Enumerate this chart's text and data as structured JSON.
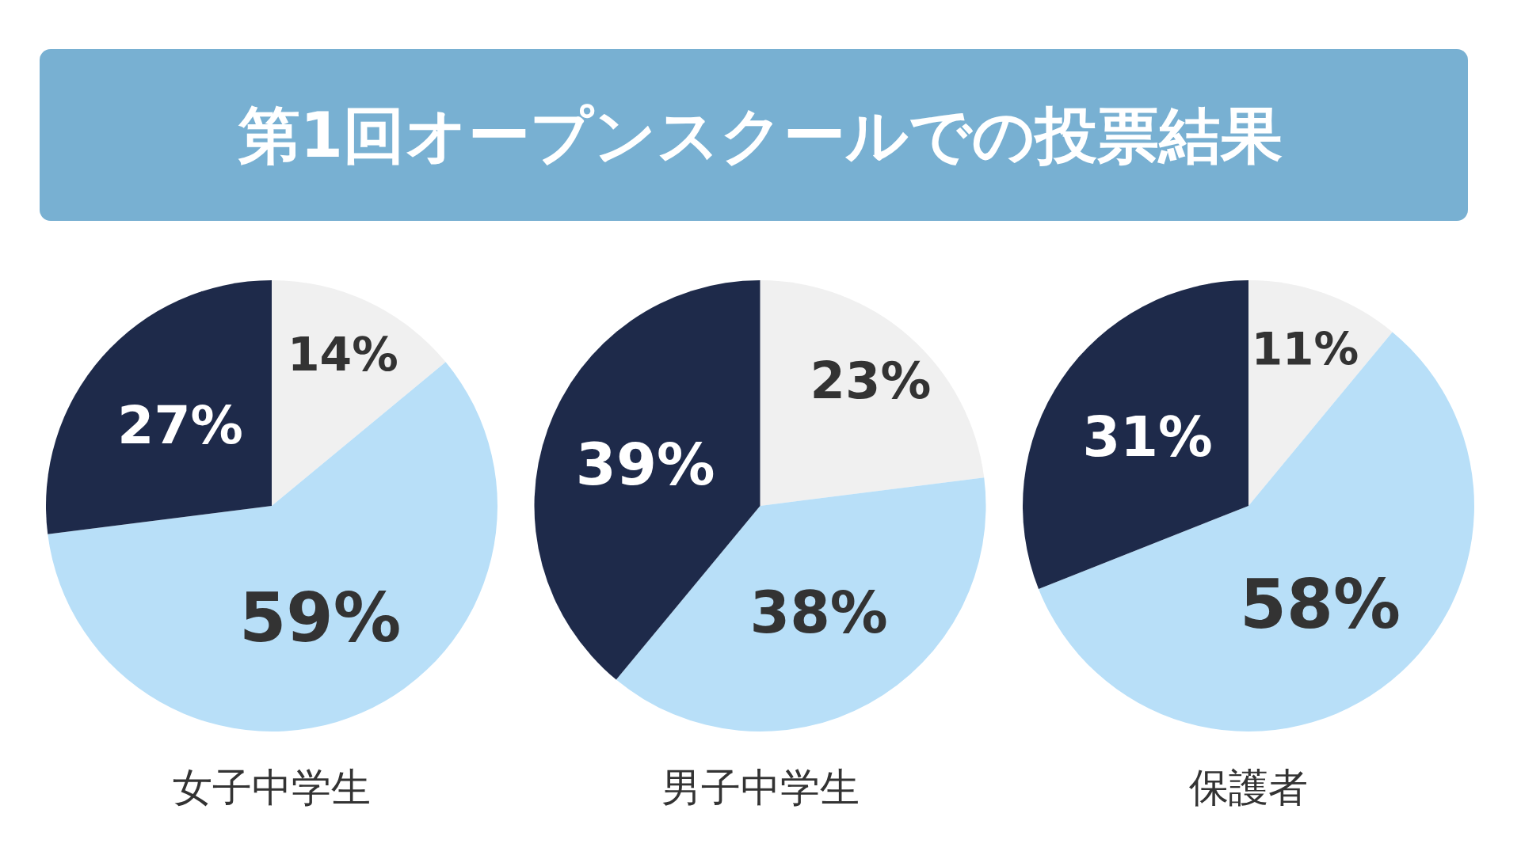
{
  "chart_data": [
    {
      "type": "other",
      "title": "第1回オープンスクールでの投票結果"
    },
    {
      "type": "pie",
      "title": "女子中学生",
      "categories": [
        null,
        null,
        null
      ],
      "values": [
        14,
        59,
        27
      ],
      "colors": [
        "#f0f0f0",
        "#b8dff8",
        "#1e2a4a"
      ],
      "value_labels": [
        "14%",
        "59%",
        "27%"
      ]
    },
    {
      "type": "pie",
      "title": "男子中学生",
      "categories": [
        null,
        null,
        null
      ],
      "values": [
        23,
        38,
        39
      ],
      "colors": [
        "#f0f0f0",
        "#b8dff8",
        "#1e2a4a"
      ],
      "value_labels": [
        "23%",
        "38%",
        "39%"
      ]
    },
    {
      "type": "pie",
      "title": "保護者",
      "categories": [
        null,
        null,
        null
      ],
      "values": [
        11,
        58,
        31
      ],
      "colors": [
        "#f0f0f0",
        "#b8dff8",
        "#1e2a4a"
      ],
      "value_labels": [
        "11%",
        "58%",
        "31%"
      ]
    }
  ]
}
